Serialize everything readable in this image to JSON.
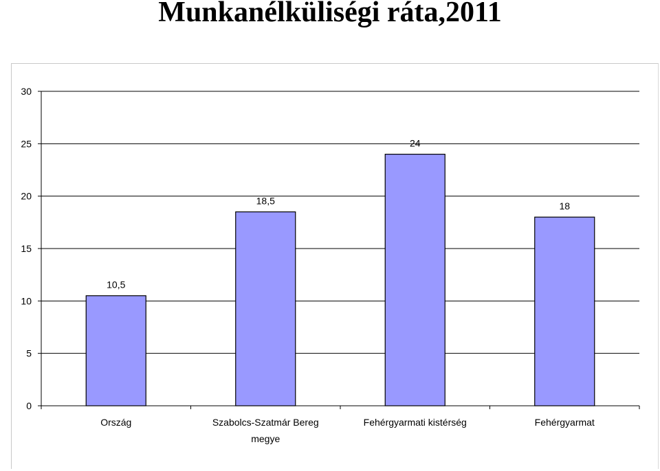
{
  "title": "Munkanélküliségi ráta,2011",
  "chart_data": {
    "type": "bar",
    "categories": [
      [
        "Ország"
      ],
      [
        "Szabolcs-Szatmár Bereg",
        "megye"
      ],
      [
        "Fehérgyarmati kistérség"
      ],
      [
        "Fehérgyarmat"
      ]
    ],
    "values": [
      10.5,
      18.5,
      24,
      18
    ],
    "value_labels": [
      "10,5",
      "18,5",
      "24",
      "18"
    ],
    "y_ticks": [
      "0",
      "5",
      "10",
      "15",
      "20",
      "25",
      "30"
    ],
    "ylim": [
      0,
      30
    ],
    "y_step": 5,
    "grid": true,
    "legend": "none",
    "colors": {
      "bar": "#9999ff",
      "bar_stroke": "#000000",
      "grid": "#000000"
    }
  }
}
